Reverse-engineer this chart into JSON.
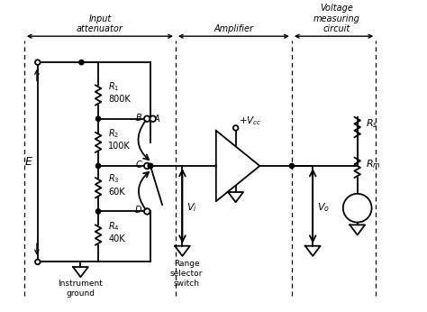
{
  "bg_color": "#ffffff",
  "line_color": "#000000",
  "labels": {
    "input_attenuator": "Input\nattenuator",
    "amplifier": "Amplifier",
    "voltage_measuring": "Voltage\nmeasuring\ncircuit",
    "R1": "$R_1$\n800K",
    "R2": "$R_2$\n100K",
    "R3": "$R_3$\n60K",
    "R4": "$R_4$\n40K",
    "Rs": "$R_s$",
    "Rm": "$R_m$",
    "E": "E",
    "Vi": "$V_i$",
    "Vo": "$V_o$",
    "Vcc": "$+V_{cc}$",
    "B": "B",
    "C": "C",
    "D": "D",
    "A": "A",
    "range_selector": "Range\nselector\nswitch",
    "instrument_ground": "Instrument\nground"
  },
  "figsize": [
    4.74,
    3.46
  ],
  "dpi": 100
}
